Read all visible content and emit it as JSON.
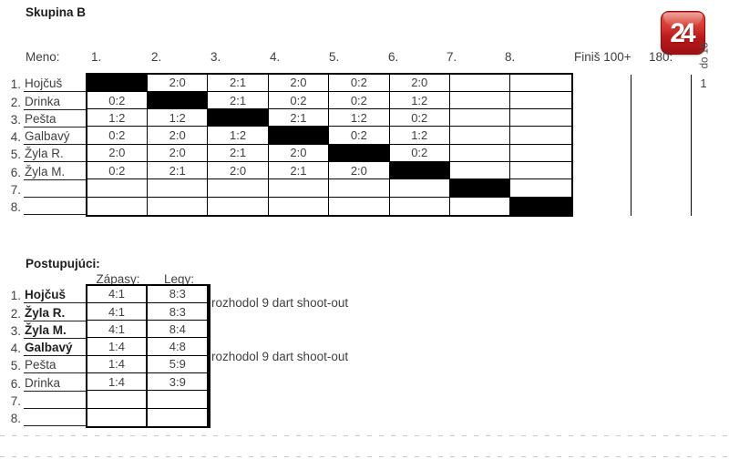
{
  "title": "Skupina B",
  "logo": {
    "text": "24",
    "color": "#c4161c"
  },
  "matrix": {
    "name_header": "Meno:",
    "col_headers": [
      "1.",
      "2.",
      "3.",
      "4.",
      "5.",
      "6.",
      "7.",
      "8."
    ],
    "finish_header": "Finiš 100+",
    "maximum_header": "180:",
    "do18_header": "do 18",
    "rows": [
      {
        "num": "1.",
        "name": "Hojčuš",
        "self": 0,
        "cells": [
          "",
          "2:0",
          "2:1",
          "2:0",
          "0:2",
          "2:0",
          "",
          ""
        ],
        "do18": "1"
      },
      {
        "num": "2.",
        "name": "Drinka",
        "self": 1,
        "cells": [
          "0:2",
          "",
          "2:1",
          "0:2",
          "0:2",
          "1:2",
          "",
          ""
        ]
      },
      {
        "num": "3.",
        "name": "Pešta",
        "self": 2,
        "cells": [
          "1:2",
          "1:2",
          "",
          "2:1",
          "1:2",
          "0:2",
          "",
          ""
        ]
      },
      {
        "num": "4.",
        "name": "Galbavý",
        "self": 3,
        "cells": [
          "0:2",
          "2:0",
          "1:2",
          "",
          "0:2",
          "1:2",
          "",
          ""
        ]
      },
      {
        "num": "5.",
        "name": "Žyla R.",
        "self": 4,
        "cells": [
          "2:0",
          "2:0",
          "2:1",
          "2:0",
          "",
          "0:2",
          "",
          ""
        ]
      },
      {
        "num": "6.",
        "name": "Žyla M.",
        "self": 5,
        "cells": [
          "0:2",
          "2:1",
          "2:0",
          "2:1",
          "2:0",
          "",
          "",
          ""
        ]
      },
      {
        "num": "7.",
        "name": "",
        "self": 6,
        "cells": [
          "",
          "",
          "",
          "",
          "",
          "",
          "",
          ""
        ]
      },
      {
        "num": "8.",
        "name": "",
        "self": 7,
        "cells": [
          "",
          "",
          "",
          "",
          "",
          "",
          "",
          ""
        ]
      }
    ]
  },
  "standings": {
    "title": "Postupujúci:",
    "col_headers": [
      "Zápasy:",
      "Legy:"
    ],
    "rows": [
      {
        "num": "1.",
        "name": "Hojčuš",
        "bold": true,
        "zapasy": "4:1",
        "legy": "8:3"
      },
      {
        "num": "2.",
        "name": "Žyla R.",
        "bold": true,
        "zapasy": "4:1",
        "legy": "8:3"
      },
      {
        "num": "3.",
        "name": "Žyla M.",
        "bold": true,
        "zapasy": "4:1",
        "legy": "8:4"
      },
      {
        "num": "4.",
        "name": "Galbavý",
        "bold": true,
        "zapasy": "1:4",
        "legy": "4:8"
      },
      {
        "num": "5.",
        "name": "Pešta",
        "bold": false,
        "zapasy": "1:4",
        "legy": "5:9"
      },
      {
        "num": "6.",
        "name": "Drinka",
        "bold": false,
        "zapasy": "1:4",
        "legy": "3:9"
      },
      {
        "num": "7.",
        "name": "",
        "bold": false,
        "zapasy": "",
        "legy": ""
      },
      {
        "num": "8.",
        "name": "",
        "bold": false,
        "zapasy": "",
        "legy": ""
      }
    ],
    "notes": [
      {
        "text": "rozhodol 9 dart shoot-out"
      },
      {
        "text": "rozhodol 9 dart shoot-out"
      }
    ]
  }
}
